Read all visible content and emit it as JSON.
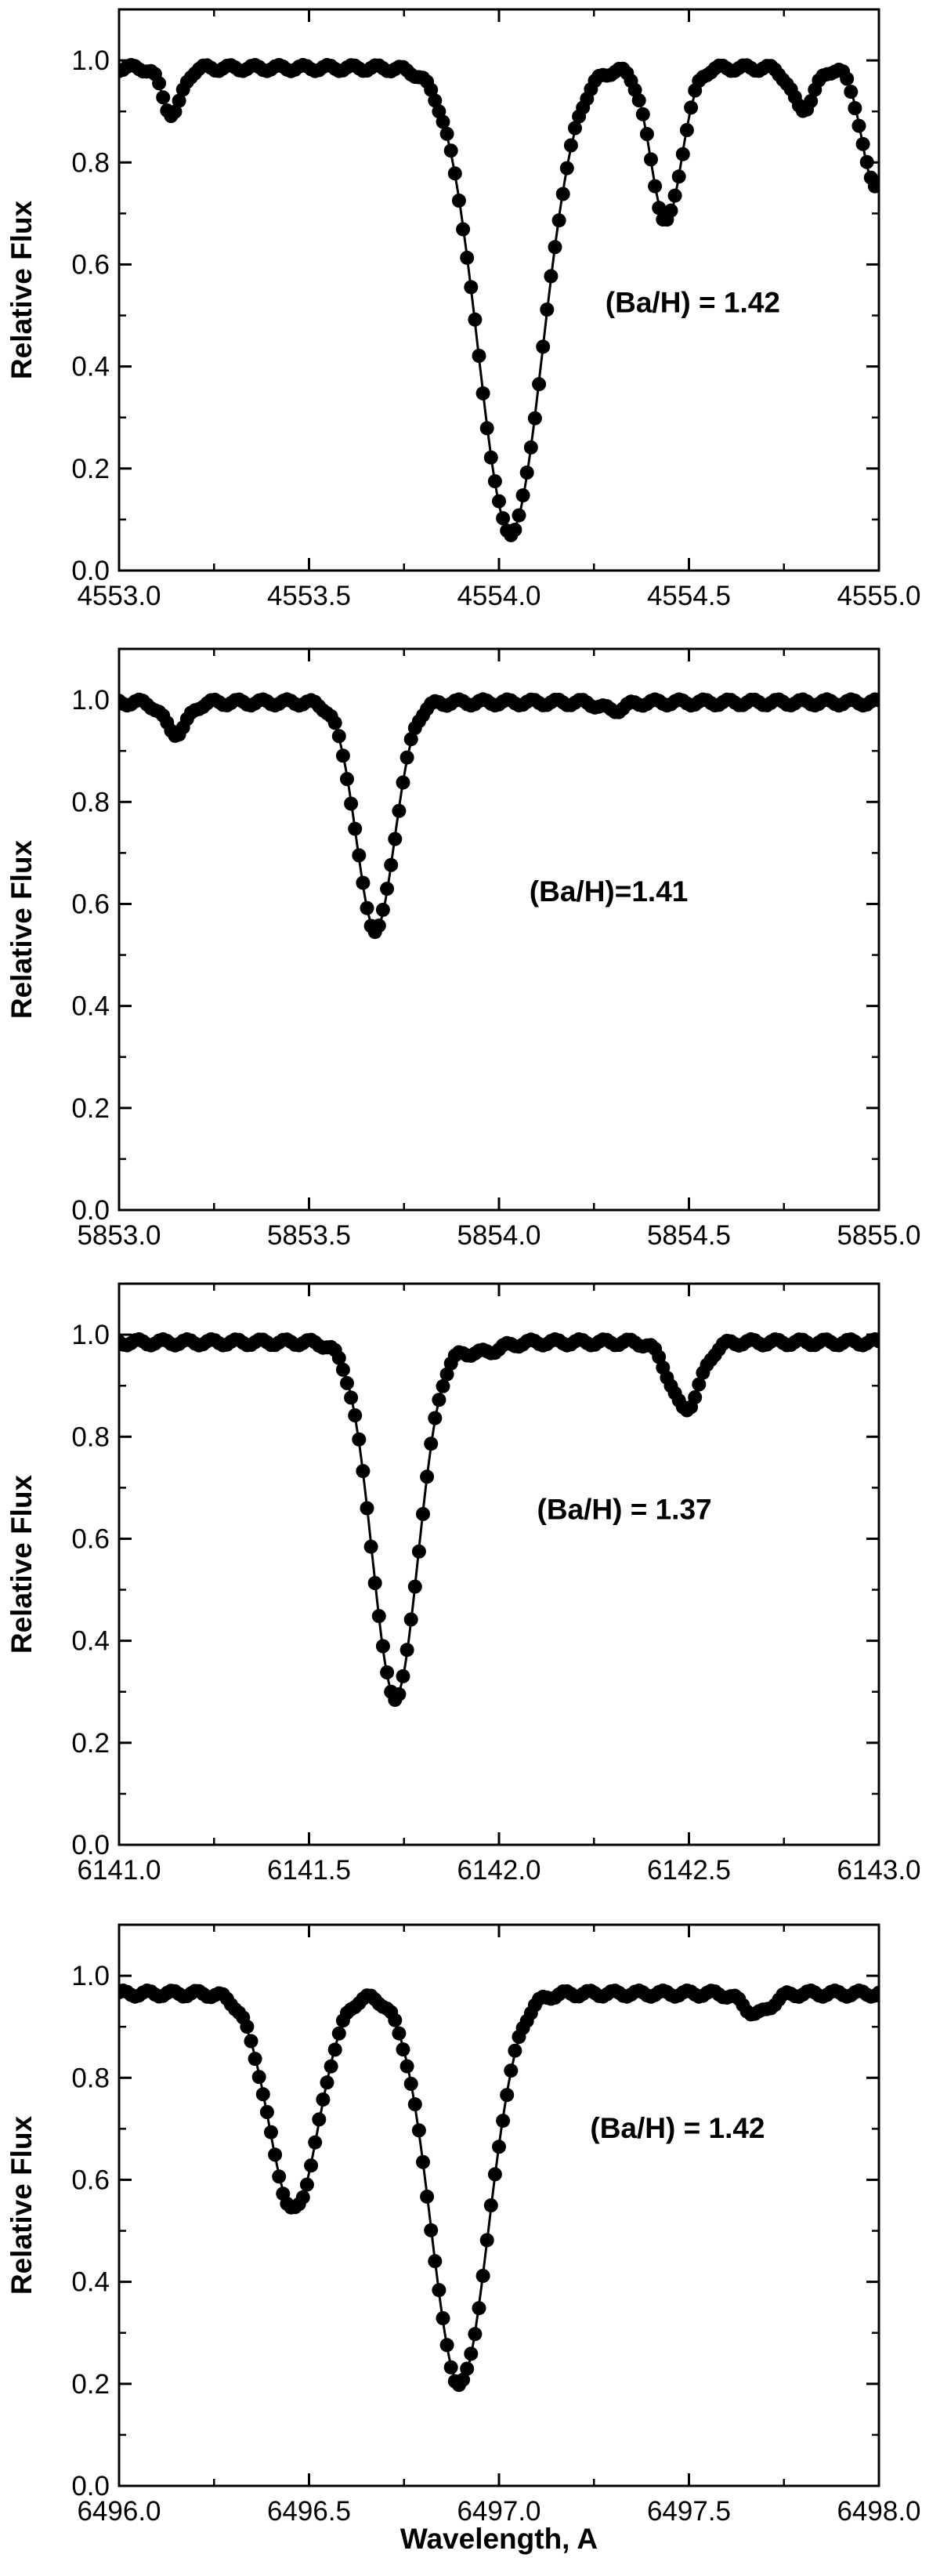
{
  "chart_data": [
    {
      "type": "line",
      "ylabel": "Relative Flux",
      "annotation": "(Ba/H) = 1.42",
      "xlim": [
        4553.0,
        4555.0
      ],
      "ylim": [
        0.0,
        1.1
      ],
      "xticks": [
        "4553.0",
        "4553.5",
        "4554.0",
        "4554.5",
        "4555.0"
      ],
      "yticks": [
        "0.0",
        "0.2",
        "0.4",
        "0.6",
        "0.8",
        "1.0"
      ],
      "continuum": 0.985,
      "lines": [
        {
          "center": 4553.14,
          "depth": 0.09,
          "width": 0.025
        },
        {
          "center": 4554.03,
          "depth": 0.91,
          "width": 0.085
        },
        {
          "center": 4554.44,
          "depth": 0.3,
          "width": 0.04
        },
        {
          "center": 4554.8,
          "depth": 0.08,
          "width": 0.03
        },
        {
          "center": 4554.99,
          "depth": 0.23,
          "width": 0.035
        }
      ],
      "series": [
        {
          "style": "dots",
          "values": [
            [
              4553.0,
              0.96
            ],
            [
              4553.05,
              0.96
            ],
            [
              4553.1,
              0.92
            ],
            [
              4553.14,
              0.89
            ],
            [
              4553.2,
              0.95
            ],
            [
              4553.3,
              0.99
            ],
            [
              4553.4,
              0.98
            ],
            [
              4553.5,
              0.99
            ],
            [
              4553.6,
              0.98
            ],
            [
              4553.7,
              0.97
            ],
            [
              4553.8,
              0.95
            ],
            [
              4553.85,
              0.9
            ],
            [
              4553.9,
              0.78
            ],
            [
              4553.94,
              0.62
            ],
            [
              4553.97,
              0.4
            ],
            [
              4554.0,
              0.17
            ],
            [
              4554.03,
              0.08
            ],
            [
              4554.06,
              0.17
            ],
            [
              4554.09,
              0.4
            ],
            [
              4554.12,
              0.62
            ],
            [
              4554.16,
              0.8
            ],
            [
              4554.2,
              0.9
            ],
            [
              4554.3,
              0.97
            ],
            [
              4554.38,
              0.95
            ],
            [
              4554.41,
              0.8
            ],
            [
              4554.44,
              0.69
            ],
            [
              4554.48,
              0.8
            ],
            [
              4554.55,
              0.95
            ],
            [
              4554.65,
              0.99
            ],
            [
              4554.72,
              0.98
            ],
            [
              4554.8,
              0.91
            ],
            [
              4554.86,
              0.98
            ],
            [
              4554.92,
              0.96
            ],
            [
              4554.96,
              0.86
            ],
            [
              4555.0,
              0.76
            ]
          ]
        },
        {
          "style": "line",
          "values": [
            [
              4553.0,
              0.97
            ],
            [
              4553.05,
              0.99
            ],
            [
              4553.1,
              0.93
            ],
            [
              4553.2,
              0.96
            ],
            [
              4553.4,
              0.99
            ],
            [
              4553.6,
              0.99
            ],
            [
              4553.8,
              0.95
            ],
            [
              4554.03,
              0.08
            ],
            [
              4554.3,
              0.97
            ],
            [
              4554.44,
              0.69
            ],
            [
              4554.5,
              0.72
            ],
            [
              4554.55,
              0.85
            ],
            [
              4554.6,
              0.98
            ],
            [
              4555.0,
              0.76
            ]
          ]
        }
      ]
    },
    {
      "type": "line",
      "ylabel": "Relative Flux",
      "annotation": "(Ba/H)=1.41",
      "xlim": [
        5853.0,
        5855.0
      ],
      "ylim": [
        0.0,
        1.1
      ],
      "xticks": [
        "5853.0",
        "5853.5",
        "5854.0",
        "5854.5",
        "5855.0"
      ],
      "yticks": [
        "0.0",
        "0.2",
        "0.4",
        "0.6",
        "0.8",
        "1.0"
      ],
      "continuum": 0.995,
      "lines": [
        {
          "center": 5853.15,
          "depth": 0.06,
          "width": 0.03
        },
        {
          "center": 5853.675,
          "depth": 0.445,
          "width": 0.05
        },
        {
          "center": 5854.3,
          "depth": 0.015,
          "width": 0.03
        }
      ],
      "series": [
        {
          "style": "dots",
          "values": [
            [
              5853.0,
              1.0
            ],
            [
              5853.1,
              0.97
            ],
            [
              5853.15,
              0.94
            ],
            [
              5853.2,
              0.98
            ],
            [
              5853.4,
              0.99
            ],
            [
              5853.55,
              0.98
            ],
            [
              5853.6,
              0.88
            ],
            [
              5853.64,
              0.7
            ],
            [
              5853.67,
              0.55
            ],
            [
              5853.7,
              0.62
            ],
            [
              5853.74,
              0.82
            ],
            [
              5853.8,
              0.96
            ],
            [
              5854.0,
              0.99
            ],
            [
              5854.3,
              0.98
            ],
            [
              5854.6,
              1.0
            ],
            [
              5855.0,
              0.99
            ]
          ]
        },
        {
          "style": "line",
          "values": [
            [
              5853.0,
              1.0
            ],
            [
              5853.15,
              0.94
            ],
            [
              5853.67,
              0.55
            ],
            [
              5855.0,
              0.99
            ]
          ]
        }
      ]
    },
    {
      "type": "line",
      "ylabel": "Relative Flux",
      "annotation": "(Ba/H) = 1.37",
      "xlim": [
        6141.0,
        6143.0
      ],
      "ylim": [
        0.0,
        1.1
      ],
      "xticks": [
        "6141.0",
        "6141.5",
        "6142.0",
        "6142.5",
        "6143.0"
      ],
      "yticks": [
        "0.0",
        "0.2",
        "0.4",
        "0.6",
        "0.8",
        "1.0"
      ],
      "continuum": 0.985,
      "lines": [
        {
          "center": 6141.727,
          "depth": 0.695,
          "width": 0.06
        },
        {
          "center": 6142.49,
          "depth": 0.13,
          "width": 0.04
        },
        {
          "center": 6141.95,
          "depth": 0.02,
          "width": 0.05
        }
      ],
      "series": [
        {
          "style": "dots",
          "values": [
            [
              6141.0,
              0.98
            ],
            [
              6141.3,
              0.99
            ],
            [
              6141.55,
              0.97
            ],
            [
              6141.62,
              0.85
            ],
            [
              6141.67,
              0.62
            ],
            [
              6141.7,
              0.42
            ],
            [
              6141.73,
              0.29
            ],
            [
              6141.76,
              0.4
            ],
            [
              6141.8,
              0.65
            ],
            [
              6141.86,
              0.88
            ],
            [
              6142.0,
              0.97
            ],
            [
              6142.3,
              0.98
            ],
            [
              6142.42,
              0.93
            ],
            [
              6142.49,
              0.86
            ],
            [
              6142.56,
              0.93
            ],
            [
              6142.7,
              0.98
            ],
            [
              6143.0,
              0.99
            ]
          ]
        },
        {
          "style": "line",
          "values": [
            [
              6141.0,
              0.985
            ],
            [
              6141.727,
              0.29
            ],
            [
              6142.49,
              0.855
            ],
            [
              6143.0,
              0.985
            ]
          ]
        }
      ]
    },
    {
      "type": "line",
      "ylabel": "Relative Flux",
      "xlabel": "Wavelength, A",
      "annotation": "(Ba/H) = 1.42",
      "xlim": [
        6496.0,
        6498.0
      ],
      "ylim": [
        0.0,
        1.1
      ],
      "xticks": [
        "6496.0",
        "6496.5",
        "6497.0",
        "6497.5",
        "6498.0"
      ],
      "yticks": [
        "0.0",
        "0.2",
        "0.4",
        "0.6",
        "0.8",
        "1.0"
      ],
      "continuum": 0.965,
      "lines": [
        {
          "center": 6496.46,
          "depth": 0.425,
          "width": 0.065
        },
        {
          "center": 6496.897,
          "depth": 0.765,
          "width": 0.075
        },
        {
          "center": 6497.68,
          "depth": 0.04,
          "width": 0.035
        }
      ],
      "series": [
        {
          "style": "dots",
          "values": [
            [
              6496.0,
              0.97
            ],
            [
              6496.2,
              0.95
            ],
            [
              6496.3,
              0.88
            ],
            [
              6496.38,
              0.7
            ],
            [
              6496.43,
              0.57
            ],
            [
              6496.46,
              0.53
            ],
            [
              6496.5,
              0.6
            ],
            [
              6496.56,
              0.85
            ],
            [
              6496.62,
              0.94
            ],
            [
              6496.7,
              0.95
            ],
            [
              6496.78,
              0.85
            ],
            [
              6496.83,
              0.6
            ],
            [
              6496.87,
              0.35
            ],
            [
              6496.9,
              0.2
            ],
            [
              6496.93,
              0.3
            ],
            [
              6496.97,
              0.55
            ],
            [
              6497.02,
              0.82
            ],
            [
              6497.1,
              0.95
            ],
            [
              6497.4,
              0.97
            ],
            [
              6497.6,
              0.96
            ],
            [
              6497.68,
              0.93
            ],
            [
              6497.76,
              0.96
            ],
            [
              6498.0,
              0.97
            ]
          ]
        },
        {
          "style": "line",
          "values": [
            [
              6496.0,
              0.97
            ],
            [
              6496.25,
              0.97
            ],
            [
              6496.46,
              0.53
            ],
            [
              6496.897,
              0.2
            ],
            [
              6497.68,
              0.925
            ],
            [
              6498.0,
              0.965
            ]
          ]
        }
      ]
    }
  ]
}
